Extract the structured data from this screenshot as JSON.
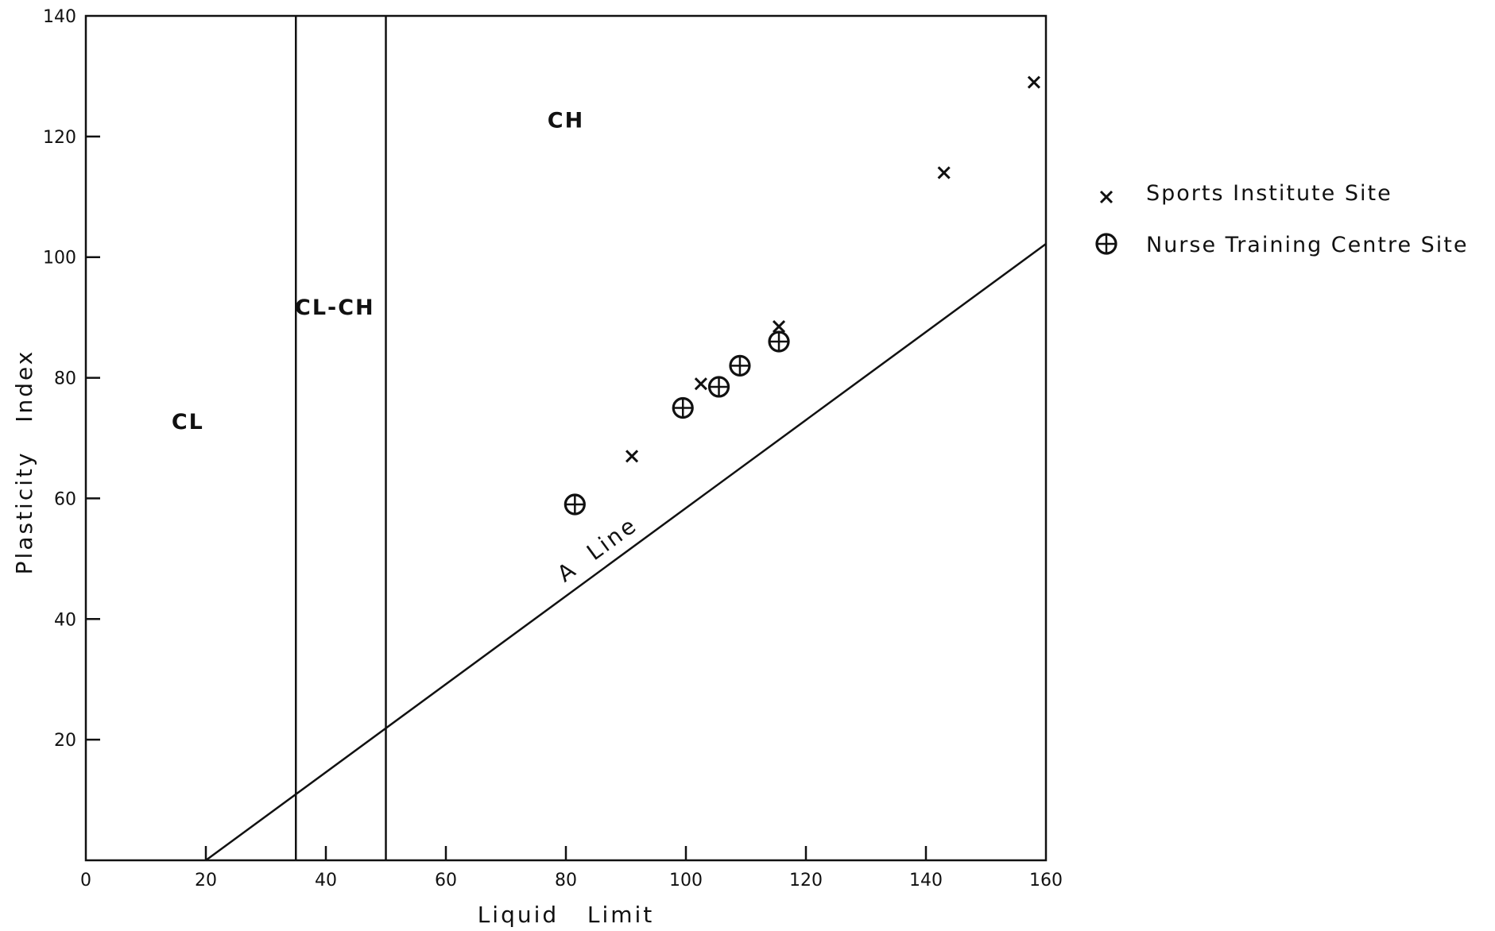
{
  "chart_data": {
    "type": "scatter",
    "title": "",
    "xlabel": "Liquid   Limit",
    "ylabel": "Plasticity   Index",
    "xlim": [
      0,
      160
    ],
    "ylim": [
      0,
      140
    ],
    "x_ticks": [
      0,
      20,
      40,
      60,
      80,
      100,
      120,
      140,
      160
    ],
    "y_ticks": [
      20,
      40,
      60,
      80,
      100,
      120,
      140
    ],
    "grid": false,
    "legend_position": "right",
    "series": [
      {
        "name": "Sports Institute Site",
        "marker": "x",
        "points": [
          {
            "x": 91,
            "y": 67
          },
          {
            "x": 102.5,
            "y": 79
          },
          {
            "x": 115.5,
            "y": 88.5
          },
          {
            "x": 143,
            "y": 114
          },
          {
            "x": 158,
            "y": 129
          }
        ]
      },
      {
        "name": "Nurse Training Centre Site",
        "marker": "circle-plus",
        "points": [
          {
            "x": 81.5,
            "y": 59
          },
          {
            "x": 99.5,
            "y": 75
          },
          {
            "x": 105.5,
            "y": 78.5
          },
          {
            "x": 109,
            "y": 82
          },
          {
            "x": 115.5,
            "y": 86
          }
        ]
      }
    ],
    "reference_lines": {
      "a_line": {
        "label": "A  Line",
        "x_start": 20,
        "x_end": 160,
        "slope": 0.73
      },
      "boundaries_x": [
        35,
        50
      ]
    },
    "zone_labels": [
      {
        "text": "CL",
        "x": 17,
        "y": 71.5
      },
      {
        "text": "CL-CH",
        "x": 41.5,
        "y": 90.5
      },
      {
        "text": "CH",
        "x": 80,
        "y": 121.5
      }
    ]
  }
}
